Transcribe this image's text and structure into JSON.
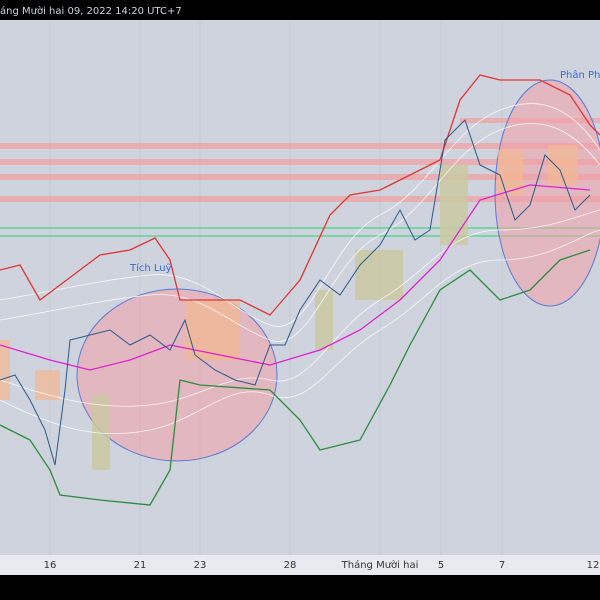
{
  "header": {
    "timestamp": "áng Mười hai 09, 2022 14:20 UTC+7"
  },
  "annotations": {
    "left_zone": "Tích Luỹ",
    "right_zone": "Phân Phố"
  },
  "time_axis": {
    "labels": [
      "16",
      "21",
      "23",
      "28",
      "Tháng Mười hai",
      "5",
      "7",
      "12"
    ]
  }
}
